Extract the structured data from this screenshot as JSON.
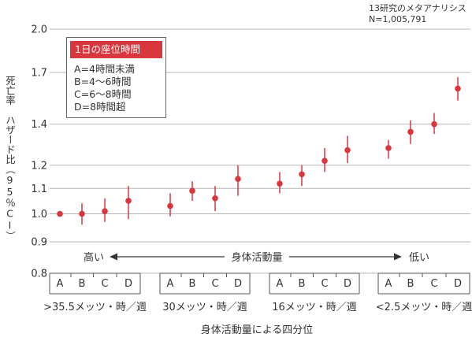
{
  "colors": {
    "marker": "#d8373d",
    "errorbar": "#d8373d",
    "grid": "#b4b4b4",
    "text": "#333333",
    "axis": "#555555"
  },
  "note": {
    "line1": "13研究のメタアナリシス",
    "line2": "N=1,005,791"
  },
  "legend": {
    "title": "1日の座位時間",
    "items": [
      "A=4時間未満",
      "B=4～6時間",
      "C=6～8時間",
      "D=8時間超"
    ]
  },
  "chart_data": {
    "type": "scatter",
    "y_scale": "log",
    "ylim": [
      0.8,
      2.0
    ],
    "yticks": [
      "2.0",
      "1.7",
      "1.4",
      "1.2",
      "1.1",
      "1.0",
      "0.9",
      "0.8"
    ],
    "ytick_values": [
      2.0,
      1.7,
      1.4,
      1.2,
      1.1,
      1.0,
      0.9,
      0.8
    ],
    "ylabel": "死亡率　ハザード比（95％CI）",
    "xlabel": "身体活動量による四分位",
    "grid": true,
    "arrow": {
      "left": "高い",
      "center": "身体活動量",
      "right": "低い"
    },
    "groups": [
      {
        "name": ">35.5メッツ・時／週",
        "points": [
          {
            "x": "A",
            "hr": 1.0,
            "lo": 1.0,
            "hi": 1.0
          },
          {
            "x": "B",
            "hr": 1.0,
            "lo": 0.96,
            "hi": 1.04
          },
          {
            "x": "C",
            "hr": 1.01,
            "lo": 0.97,
            "hi": 1.06
          },
          {
            "x": "D",
            "hr": 1.05,
            "lo": 0.98,
            "hi": 1.11
          }
        ]
      },
      {
        "name": "30メッツ・時／週",
        "points": [
          {
            "x": "A",
            "hr": 1.03,
            "lo": 0.99,
            "hi": 1.08
          },
          {
            "x": "B",
            "hr": 1.09,
            "lo": 1.05,
            "hi": 1.13
          },
          {
            "x": "C",
            "hr": 1.06,
            "lo": 1.01,
            "hi": 1.11
          },
          {
            "x": "D",
            "hr": 1.14,
            "lo": 1.07,
            "hi": 1.2
          }
        ]
      },
      {
        "name": "16メッツ・時／週",
        "points": [
          {
            "x": "A",
            "hr": 1.12,
            "lo": 1.08,
            "hi": 1.17
          },
          {
            "x": "B",
            "hr": 1.16,
            "lo": 1.11,
            "hi": 1.2
          },
          {
            "x": "C",
            "hr": 1.22,
            "lo": 1.17,
            "hi": 1.28
          },
          {
            "x": "D",
            "hr": 1.27,
            "lo": 1.21,
            "hi": 1.34
          }
        ]
      },
      {
        "name": "<2.5メッツ・時／週",
        "points": [
          {
            "x": "A",
            "hr": 1.28,
            "lo": 1.23,
            "hi": 1.32
          },
          {
            "x": "B",
            "hr": 1.36,
            "lo": 1.3,
            "hi": 1.42
          },
          {
            "x": "C",
            "hr": 1.4,
            "lo": 1.35,
            "hi": 1.46
          },
          {
            "x": "D",
            "hr": 1.6,
            "lo": 1.53,
            "hi": 1.67
          }
        ]
      }
    ]
  }
}
